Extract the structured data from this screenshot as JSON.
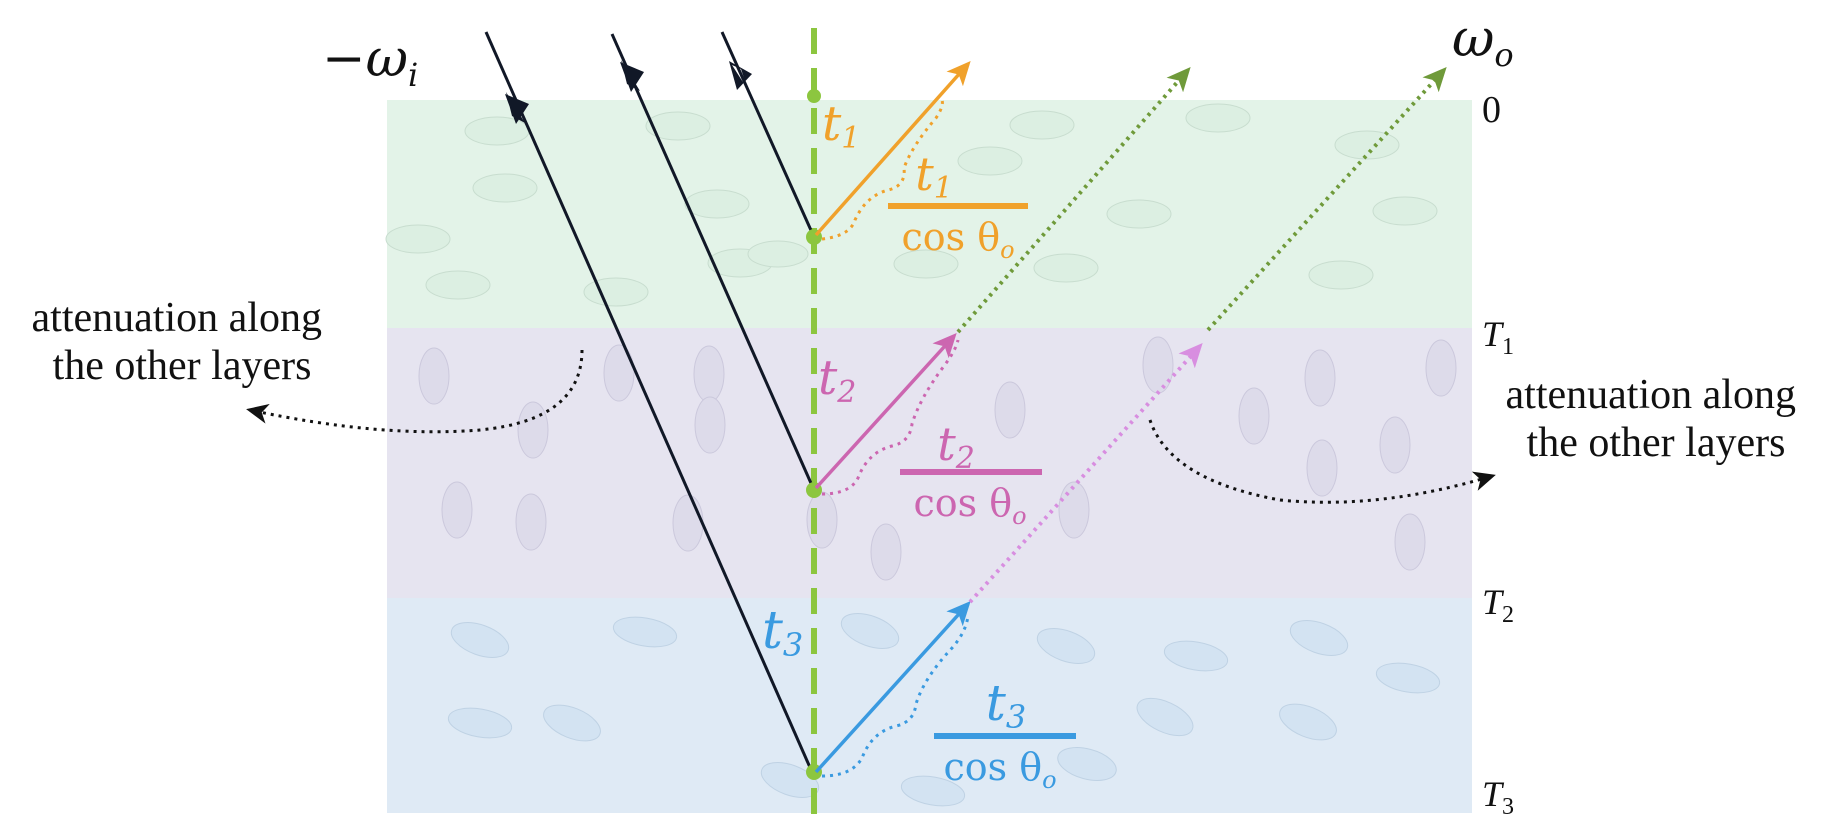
{
  "labels": {
    "incident": "−ω",
    "incident_sub": "i",
    "outgoing": "ω",
    "outgoing_sub": "o",
    "depth_0": "0",
    "depth_T1": "T",
    "depth_T1_sub": "1",
    "depth_T2": "T",
    "depth_T2_sub": "2",
    "depth_T3": "T",
    "depth_T3_sub": "3",
    "attenuation_left_line1": "attenuation along",
    "attenuation_left_line2": "the other layers",
    "attenuation_right_line1": "attenuation along",
    "attenuation_right_line2": "the other layers"
  },
  "layers": [
    {
      "name": "layer-1",
      "color": "#e3f3e8",
      "grain_color": "#cfe3d6",
      "t_label": "t",
      "t_sub": "1",
      "frac_num": "t",
      "frac_num_sub": "1",
      "frac_den": "cos θ",
      "frac_den_sub": "o",
      "accent": "#f0a12b",
      "exit_color": "#6f9a3a"
    },
    {
      "name": "layer-2",
      "color": "#e6e4f0",
      "grain_color": "#d0cde0",
      "t_label": "t",
      "t_sub": "2",
      "frac_num": "t",
      "frac_num_sub": "2",
      "frac_den": "cos θ",
      "frac_den_sub": "o",
      "accent": "#cc66b0",
      "exit_color": "#d88ee0"
    },
    {
      "name": "layer-3",
      "color": "#dfeaf5",
      "grain_color": "#c8d8e8",
      "t_label": "t",
      "t_sub": "3",
      "frac_num": "t",
      "frac_num_sub": "3",
      "frac_den": "cos θ",
      "frac_den_sub": "o",
      "accent": "#3a9ae0",
      "exit_color": "#d8a0ec"
    }
  ],
  "colors": {
    "normal_axis": "#8cc63f",
    "incident_ray": "#111827",
    "attenuation_arrow": "#111111"
  }
}
